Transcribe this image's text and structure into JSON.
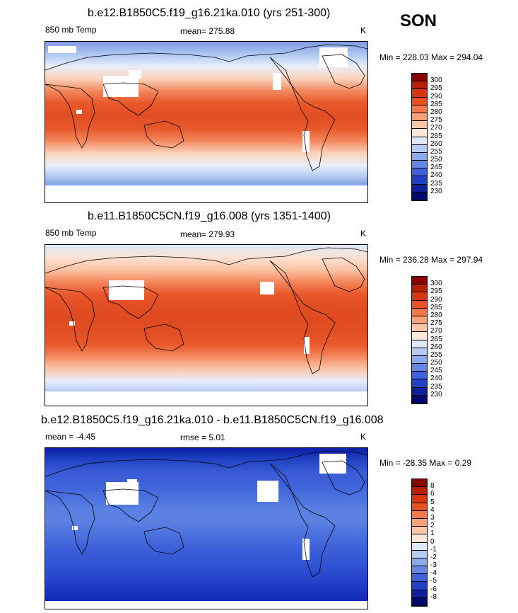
{
  "season": "SON",
  "panels": [
    {
      "title": "b.e12.B1850C5.f19_g16.21ka.010 (yrs 251-300)",
      "variable": "850 mb Temp",
      "stat_text": "mean= 275.88",
      "units": "K",
      "range_text": "Min = 228.03 Max = 294.04",
      "colorbar": {
        "labels": [
          "300",
          "295",
          "290",
          "285",
          "280",
          "275",
          "270",
          "265",
          "260",
          "255",
          "250",
          "245",
          "240",
          "235",
          "230"
        ],
        "colors": [
          "#8b0000",
          "#b81e00",
          "#d93510",
          "#ed5020",
          "#f5784a",
          "#faa07a",
          "#fdc6a8",
          "#fde8d8",
          "#dfe9f8",
          "#b5ccf2",
          "#8aaaec",
          "#6486e4",
          "#3e5fe0",
          "#2040c8",
          "#10209c",
          "#000a6e"
        ]
      },
      "gradient": [
        "#7e9ae4",
        "#aec6f1",
        "#e9eefa",
        "#fbd1b9",
        "#f4865b",
        "#e8572a",
        "#e24e23",
        "#e8572a",
        "#f4865b",
        "#fbd1b9",
        "#e9eefa",
        "#aec6f1",
        "#6686df",
        "#4a6ad9"
      ]
    },
    {
      "title": "b.e11.B1850C5CN.f19_g16.008 (yrs 1351-1400)",
      "variable": "850 mb Temp",
      "stat_text": "mean= 279.93",
      "units": "K",
      "range_text": "Min = 236.28 Max = 297.94",
      "colorbar": {
        "labels": [
          "300",
          "295",
          "290",
          "285",
          "280",
          "275",
          "270",
          "265",
          "260",
          "255",
          "250",
          "245",
          "240",
          "235",
          "230"
        ],
        "colors": [
          "#8b0000",
          "#b81e00",
          "#d93510",
          "#ed5020",
          "#f5784a",
          "#faa07a",
          "#fdc6a8",
          "#fde8d8",
          "#dfe9f8",
          "#b5ccf2",
          "#8aaaec",
          "#6486e4",
          "#3e5fe0",
          "#2040c8",
          "#10209c",
          "#000a6e"
        ]
      },
      "gradient": [
        "#dfe8f8",
        "#fde2d2",
        "#fbc3a6",
        "#f4865b",
        "#e8572a",
        "#e24e23",
        "#df4a20",
        "#e24e23",
        "#e8572a",
        "#f4865b",
        "#fbc3a6",
        "#e9eefa",
        "#aec6f1",
        "#8aaaec"
      ]
    },
    {
      "title": "b.e12.B1850C5.f19_g16.21ka.010 - b.e11.B1850C5CN.f19_g16.008",
      "variable": "mean =  -4.45",
      "stat_text": "rmse =   5.01",
      "units": "K",
      "range_text": "Min = -28.35 Max =   0.29",
      "colorbar": {
        "labels": [
          "8",
          "6",
          "5",
          "4",
          "3",
          "2",
          "1",
          "0",
          "-1",
          "-2",
          "-3",
          "-4",
          "-5",
          "-6",
          "-8"
        ],
        "colors": [
          "#8b0000",
          "#b81e00",
          "#d93510",
          "#ed5020",
          "#f5784a",
          "#faa07a",
          "#fdc6a8",
          "#fde8d8",
          "#dfe9f8",
          "#b5ccf2",
          "#8aaaec",
          "#6486e4",
          "#3e5fe0",
          "#2040c8",
          "#10209c",
          "#000a6e"
        ]
      },
      "gradient": [
        "#0c1fa8",
        "#2044c4",
        "#3a5cd8",
        "#3e62da",
        "#4a72de",
        "#5a80e2",
        "#5a80e2",
        "#4a72de",
        "#3e62da",
        "#3458d6",
        "#2a4ed0",
        "#2040c8",
        "#1530b8",
        "#0c1fa8"
      ]
    }
  ]
}
